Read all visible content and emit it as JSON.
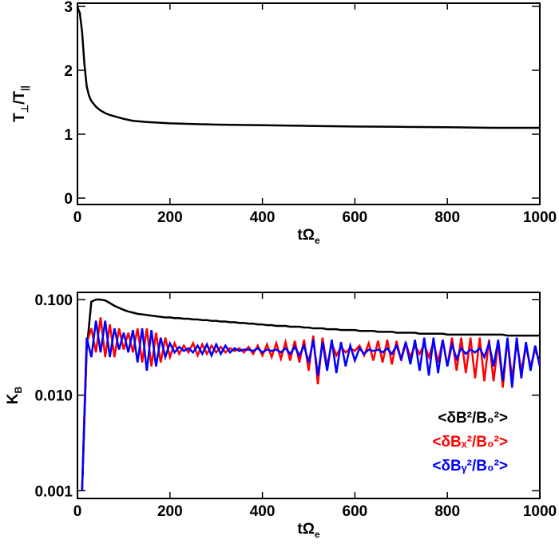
{
  "chart_data": [
    {
      "type": "line",
      "xlabel": [
        "tΩ",
        "e"
      ],
      "ylabel": [
        "T",
        "⊥",
        "/T",
        "||"
      ],
      "xlim": [
        0,
        1000
      ],
      "xticks": [
        0,
        200,
        400,
        600,
        800,
        1000
      ],
      "ylim": [
        -0.1,
        3.05
      ],
      "yticks": [
        0,
        1,
        2,
        3
      ],
      "x": [
        0,
        2,
        5,
        10,
        15,
        20,
        25,
        30,
        40,
        50,
        60,
        70,
        80,
        100,
        120,
        150,
        200,
        300,
        400,
        500,
        600,
        700,
        800,
        900,
        1000
      ],
      "series": [
        {
          "color": "#000000",
          "values": [
            3,
            2.95,
            2.9,
            2.6,
            2.1,
            1.75,
            1.6,
            1.52,
            1.43,
            1.37,
            1.33,
            1.3,
            1.28,
            1.24,
            1.21,
            1.19,
            1.17,
            1.15,
            1.14,
            1.13,
            1.12,
            1.115,
            1.11,
            1.1,
            1.1
          ]
        }
      ]
    },
    {
      "type": "line",
      "xlabel": [
        "tΩ",
        "e"
      ],
      "ylabel": [
        "K",
        "B"
      ],
      "log_y": true,
      "xlim": [
        0,
        1000
      ],
      "xticks": [
        0,
        200,
        400,
        600,
        800,
        1000
      ],
      "ylim": [
        0.00083,
        0.119
      ],
      "yticks": [
        0.001,
        {
          "value": 0.01,
          "label": "0.010"
        },
        {
          "value": 0.1,
          "label": "0.100"
        }
      ],
      "x": [
        10,
        20,
        30,
        40,
        50,
        60,
        70,
        80,
        90,
        100,
        110,
        120,
        130,
        140,
        150,
        160,
        170,
        180,
        190,
        200,
        210,
        220,
        230,
        240,
        250,
        260,
        270,
        280,
        290,
        300,
        310,
        320,
        330,
        340,
        350,
        360,
        370,
        380,
        390,
        400,
        410,
        420,
        430,
        440,
        450,
        460,
        470,
        480,
        490,
        500,
        510,
        520,
        530,
        540,
        550,
        560,
        570,
        580,
        590,
        600,
        610,
        620,
        630,
        640,
        650,
        660,
        670,
        680,
        690,
        700,
        710,
        720,
        730,
        740,
        750,
        760,
        770,
        780,
        790,
        800,
        810,
        820,
        830,
        840,
        850,
        860,
        870,
        880,
        890,
        900,
        910,
        920,
        930,
        940,
        950,
        960,
        970,
        980,
        990,
        1000
      ],
      "series": [
        {
          "name": "<δB²/B₀²>",
          "color": "#000000",
          "values": [
            0.001,
            0.03,
            0.095,
            0.1,
            0.1,
            0.098,
            0.092,
            0.086,
            0.082,
            0.078,
            0.075,
            0.073,
            0.071,
            0.07,
            0.069,
            0.068,
            0.067,
            0.066,
            0.065,
            0.065,
            0.064,
            0.064,
            0.063,
            0.063,
            0.062,
            0.062,
            0.061,
            0.061,
            0.06,
            0.06,
            0.059,
            0.059,
            0.058,
            0.058,
            0.057,
            0.057,
            0.056,
            0.056,
            0.055,
            0.055,
            0.054,
            0.054,
            0.053,
            0.053,
            0.053,
            0.052,
            0.052,
            0.052,
            0.051,
            0.051,
            0.05,
            0.05,
            0.05,
            0.049,
            0.049,
            0.049,
            0.048,
            0.048,
            0.048,
            0.048,
            0.047,
            0.047,
            0.047,
            0.047,
            0.046,
            0.046,
            0.046,
            0.046,
            0.045,
            0.045,
            0.045,
            0.045,
            0.045,
            0.044,
            0.044,
            0.044,
            0.044,
            0.044,
            0.044,
            0.043,
            0.043,
            0.043,
            0.043,
            0.043,
            0.043,
            0.043,
            0.043,
            0.043,
            0.043,
            0.043,
            0.043,
            0.043,
            0.042,
            0.042,
            0.042,
            0.042,
            0.042,
            0.042,
            0.042,
            0.042
          ]
        },
        {
          "name": "<δBₓ²/B₀²>",
          "color": "#ff0000",
          "values": [
            0.001,
            0.035,
            0.05,
            0.028,
            0.065,
            0.025,
            0.055,
            0.025,
            0.05,
            0.03,
            0.045,
            0.028,
            0.05,
            0.022,
            0.05,
            0.02,
            0.045,
            0.022,
            0.04,
            0.025,
            0.035,
            0.027,
            0.033,
            0.028,
            0.035,
            0.026,
            0.034,
            0.027,
            0.033,
            0.028,
            0.032,
            0.028,
            0.031,
            0.029,
            0.031,
            0.028,
            0.032,
            0.027,
            0.033,
            0.026,
            0.034,
            0.025,
            0.035,
            0.024,
            0.036,
            0.023,
            0.037,
            0.022,
            0.038,
            0.018,
            0.042,
            0.013,
            0.04,
            0.02,
            0.035,
            0.026,
            0.032,
            0.028,
            0.031,
            0.029,
            0.033,
            0.026,
            0.035,
            0.023,
            0.037,
            0.022,
            0.038,
            0.021,
            0.037,
            0.023,
            0.035,
            0.025,
            0.033,
            0.027,
            0.034,
            0.025,
            0.036,
            0.022,
            0.038,
            0.02,
            0.04,
            0.018,
            0.04,
            0.017,
            0.04,
            0.015,
            0.04,
            0.014,
            0.038,
            0.014,
            0.036,
            0.012,
            0.038,
            0.015,
            0.035,
            0.018,
            0.032,
            0.02,
            0.03,
            0.022
          ]
        },
        {
          "name": "<δBᵧ²/B₀²>",
          "color": "#0000ff",
          "values": [
            0.001,
            0.04,
            0.025,
            0.06,
            0.028,
            0.06,
            0.025,
            0.05,
            0.03,
            0.045,
            0.028,
            0.048,
            0.022,
            0.05,
            0.018,
            0.048,
            0.02,
            0.04,
            0.025,
            0.035,
            0.028,
            0.032,
            0.029,
            0.031,
            0.028,
            0.033,
            0.027,
            0.034,
            0.026,
            0.034,
            0.027,
            0.033,
            0.028,
            0.031,
            0.029,
            0.03,
            0.03,
            0.029,
            0.031,
            0.028,
            0.03,
            0.029,
            0.03,
            0.028,
            0.031,
            0.027,
            0.032,
            0.026,
            0.033,
            0.022,
            0.038,
            0.016,
            0.036,
            0.018,
            0.038,
            0.017,
            0.036,
            0.02,
            0.033,
            0.023,
            0.031,
            0.027,
            0.03,
            0.029,
            0.03,
            0.028,
            0.031,
            0.027,
            0.033,
            0.024,
            0.036,
            0.021,
            0.038,
            0.018,
            0.04,
            0.016,
            0.04,
            0.017,
            0.038,
            0.02,
            0.034,
            0.024,
            0.031,
            0.027,
            0.03,
            0.028,
            0.031,
            0.025,
            0.035,
            0.02,
            0.038,
            0.014,
            0.04,
            0.012,
            0.04,
            0.015,
            0.036,
            0.018,
            0.033,
            0.02
          ]
        }
      ],
      "legend": "lower right"
    }
  ]
}
